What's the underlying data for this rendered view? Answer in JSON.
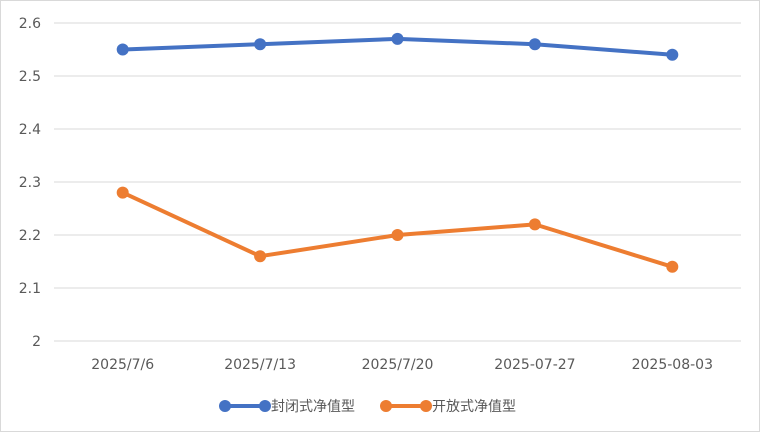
{
  "chart_data": {
    "type": "line",
    "title": "",
    "xlabel": "",
    "ylabel": "",
    "categories": [
      "2025/7/6",
      "2025/7/13",
      "2025/7/20",
      "2025-07-27",
      "2025-08-03"
    ],
    "y_ticks": [
      "2",
      "2.1",
      "2.2",
      "2.3",
      "2.4",
      "2.5",
      "2.6"
    ],
    "ylim": [
      2,
      2.6
    ],
    "grid": true,
    "legend_position": "bottom",
    "series": [
      {
        "name": "封闭式净值型",
        "color": "#4472c4",
        "values": [
          2.55,
          2.56,
          2.57,
          2.56,
          2.54
        ]
      },
      {
        "name": "开放式净值型",
        "color": "#ed7d31",
        "values": [
          2.28,
          2.16,
          2.2,
          2.22,
          2.14
        ]
      }
    ]
  }
}
